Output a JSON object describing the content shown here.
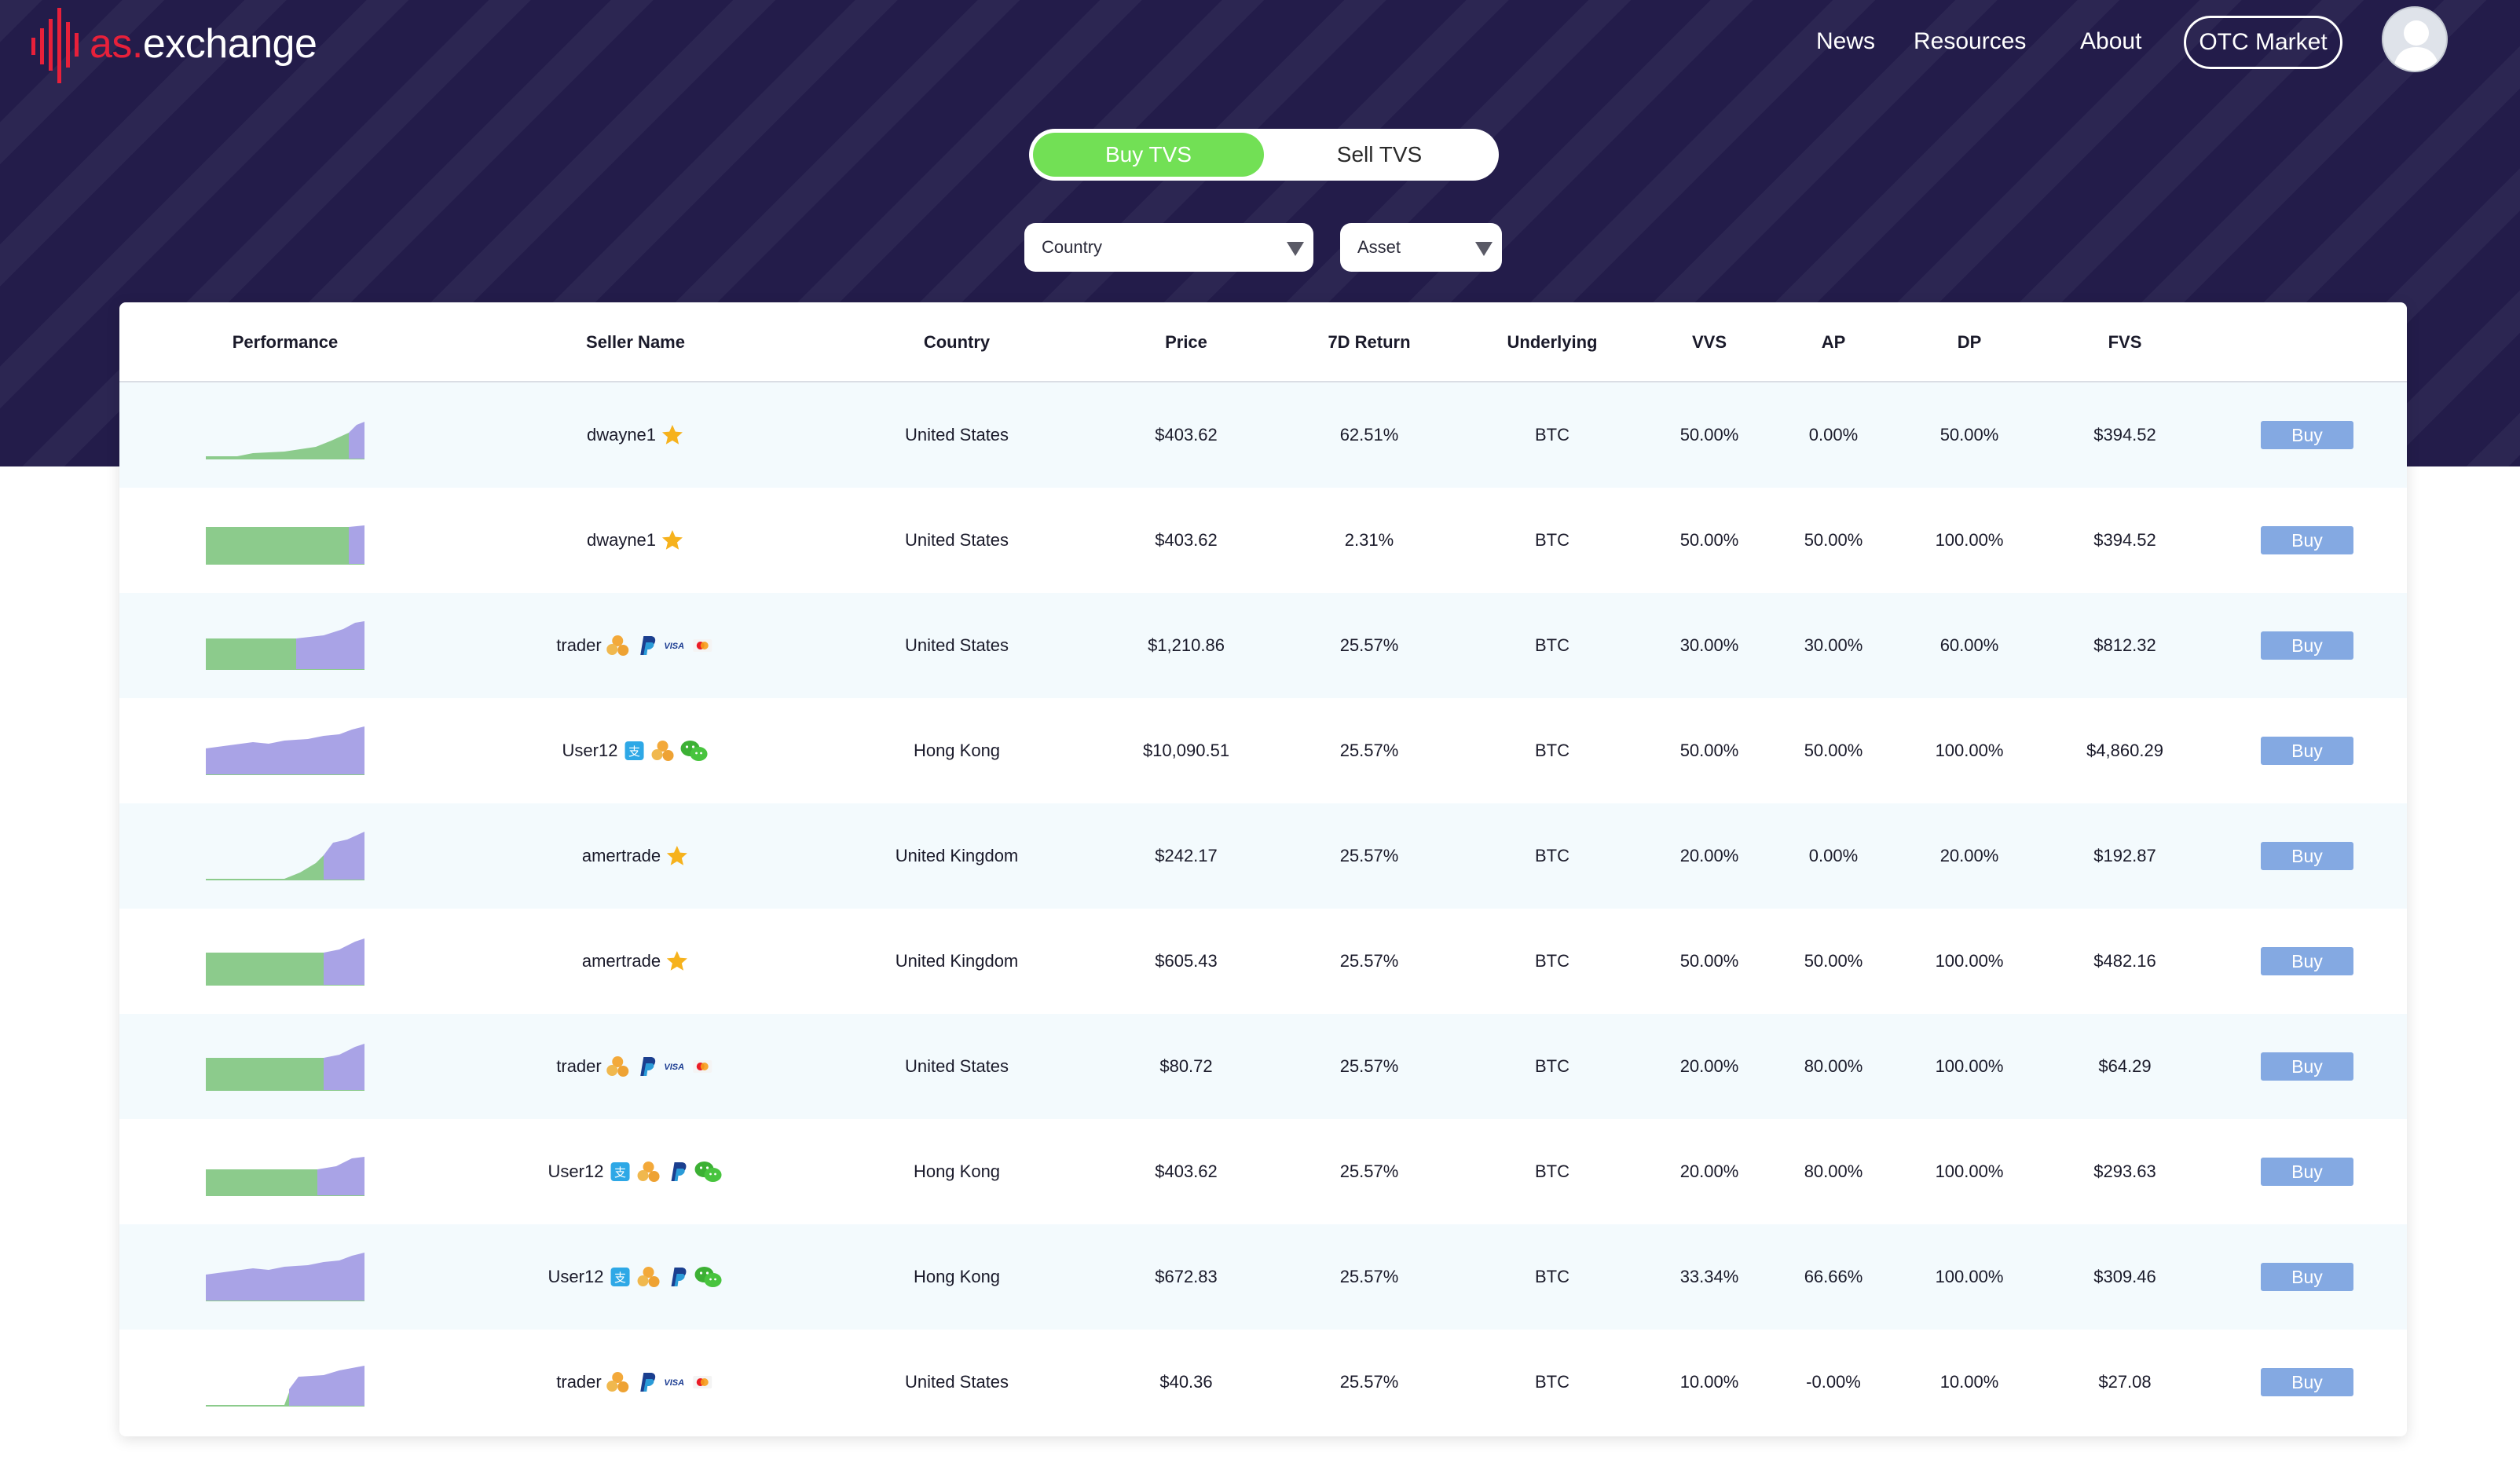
{
  "brand": {
    "prefix": "as.",
    "name": "exchange",
    "accent": "#e8203a"
  },
  "nav": {
    "links": [
      "News",
      "Resources",
      "About"
    ],
    "otc_label": "OTC Market"
  },
  "toggle": {
    "buy": "Buy TVS",
    "sell": "Sell TVS",
    "active": "buy"
  },
  "filters": {
    "country": "Country",
    "asset": "Asset"
  },
  "table": {
    "headers": [
      "Performance",
      "Seller Name",
      "Country",
      "Price",
      "7D Return",
      "Underlying",
      "VVS",
      "AP",
      "DP",
      "FVS"
    ],
    "buy_label": "Buy",
    "rows": [
      {
        "seller": "dwayne1",
        "badges": [
          "star"
        ],
        "country": "United States",
        "price": "$403.62",
        "return7d": "62.51%",
        "underlying": "BTC",
        "vvs": "50.00%",
        "ap": "0.00%",
        "dp": "50.00%",
        "fvs": "$394.52",
        "spark": "grow-late"
      },
      {
        "seller": "dwayne1",
        "badges": [
          "star"
        ],
        "country": "United States",
        "price": "$403.62",
        "return7d": "2.31%",
        "underlying": "BTC",
        "vvs": "50.00%",
        "ap": "50.00%",
        "dp": "100.00%",
        "fvs": "$394.52",
        "spark": "flat-full"
      },
      {
        "seller": "trader",
        "badges": [
          "coins",
          "paypal",
          "visa",
          "mastercard"
        ],
        "country": "United States",
        "price": "$1,210.86",
        "return7d": "25.57%",
        "underlying": "BTC",
        "vvs": "30.00%",
        "ap": "30.00%",
        "dp": "60.00%",
        "fvs": "$812.32",
        "spark": "half-step"
      },
      {
        "seller": "User12",
        "badges": [
          "alipay",
          "coins",
          "wechat"
        ],
        "country": "Hong Kong",
        "price": "$10,090.51",
        "return7d": "25.57%",
        "underlying": "BTC",
        "vvs": "50.00%",
        "ap": "50.00%",
        "dp": "100.00%",
        "fvs": "$4,860.29",
        "spark": "purple-rise"
      },
      {
        "seller": "amertrade",
        "badges": [
          "star"
        ],
        "country": "United Kingdom",
        "price": "$242.17",
        "return7d": "25.57%",
        "underlying": "BTC",
        "vvs": "20.00%",
        "ap": "0.00%",
        "dp": "20.00%",
        "fvs": "$192.87",
        "spark": "jump-late"
      },
      {
        "seller": "amertrade",
        "badges": [
          "star"
        ],
        "country": "United Kingdom",
        "price": "$605.43",
        "return7d": "25.57%",
        "underlying": "BTC",
        "vvs": "50.00%",
        "ap": "50.00%",
        "dp": "100.00%",
        "fvs": "$482.16",
        "spark": "block-rise"
      },
      {
        "seller": "trader",
        "badges": [
          "coins",
          "paypal",
          "visa",
          "mastercard"
        ],
        "country": "United States",
        "price": "$80.72",
        "return7d": "25.57%",
        "underlying": "BTC",
        "vvs": "20.00%",
        "ap": "80.00%",
        "dp": "100.00%",
        "fvs": "$64.29",
        "spark": "block-rise"
      },
      {
        "seller": "User12",
        "badges": [
          "alipay",
          "coins",
          "paypal",
          "wechat"
        ],
        "country": "Hong Kong",
        "price": "$403.62",
        "return7d": "25.57%",
        "underlying": "BTC",
        "vvs": "20.00%",
        "ap": "80.00%",
        "dp": "100.00%",
        "fvs": "$293.63",
        "spark": "block-rise-low"
      },
      {
        "seller": "User12",
        "badges": [
          "alipay",
          "coins",
          "paypal",
          "wechat"
        ],
        "country": "Hong Kong",
        "price": "$672.83",
        "return7d": "25.57%",
        "underlying": "BTC",
        "vvs": "33.34%",
        "ap": "66.66%",
        "dp": "100.00%",
        "fvs": "$309.46",
        "spark": "purple-rise"
      },
      {
        "seller": "trader",
        "badges": [
          "coins",
          "paypal",
          "visa",
          "mastercard"
        ],
        "country": "United States",
        "price": "$40.36",
        "return7d": "25.57%",
        "underlying": "BTC",
        "vvs": "10.00%",
        "ap": "-0.00%",
        "dp": "10.00%",
        "fvs": "$27.08",
        "spark": "jump-mid"
      }
    ]
  },
  "colors": {
    "hero_bg": "#231c4a",
    "toggle_active": "#72e055",
    "buy_button": "#84a9e2",
    "spark_green": "#8ccb8c",
    "spark_purple": "#a9a3e6",
    "row_alt": "#f3fafd"
  }
}
